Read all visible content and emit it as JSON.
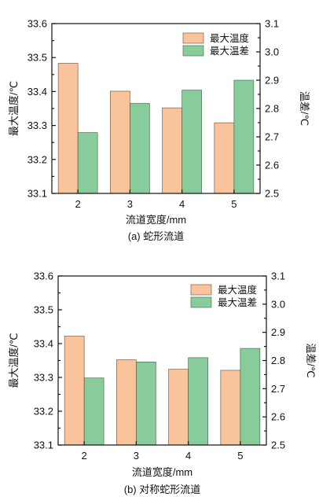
{
  "colors": {
    "max_temp": "#f9c39b",
    "max_temp_stroke": "#5a4a3a",
    "max_diff": "#89cc9b",
    "max_diff_stroke": "#3f5a45"
  },
  "chart_data": [
    {
      "type": "bar",
      "caption": "(a) 蛇形流道",
      "xlabel": "流道宽度/mm",
      "ylabel_left": "最大温度/℃",
      "ylabel_right": "温差/℃",
      "categories": [
        "2",
        "3",
        "4",
        "5"
      ],
      "ylim_left": [
        33.1,
        33.6
      ],
      "ylim_right": [
        2.5,
        3.1
      ],
      "yticks_left": [
        "33.1",
        "33.2",
        "33.3",
        "33.4",
        "33.5",
        "33.6"
      ],
      "yticks_right": [
        "2.5",
        "2.6",
        "2.7",
        "2.8",
        "2.9",
        "3.0",
        "3.1"
      ],
      "legend_position": "top-right",
      "series": [
        {
          "name": "最大温度",
          "axis": "left",
          "values": [
            33.483,
            33.401,
            33.352,
            33.308
          ]
        },
        {
          "name": "最大温差",
          "axis": "right",
          "values": [
            2.715,
            2.818,
            2.865,
            2.9
          ]
        }
      ]
    },
    {
      "type": "bar",
      "caption": "(b) 对称蛇形流道",
      "xlabel": "流道宽度/mm",
      "ylabel_left": "最大温度/℃",
      "ylabel_right": "温差/℃",
      "categories": [
        "2",
        "3",
        "4",
        "5"
      ],
      "ylim_left": [
        33.1,
        33.6
      ],
      "ylim_right": [
        2.5,
        3.1
      ],
      "yticks_left": [
        "33.1",
        "33.2",
        "33.3",
        "33.4",
        "33.5",
        "33.6"
      ],
      "yticks_right": [
        "2.5",
        "2.6",
        "2.7",
        "2.8",
        "2.9",
        "3.0",
        "3.1"
      ],
      "legend_position": "top-right",
      "series": [
        {
          "name": "最大温度",
          "axis": "left",
          "values": [
            33.422,
            33.352,
            33.324,
            33.321
          ]
        },
        {
          "name": "最大温差",
          "axis": "right",
          "values": [
            2.738,
            2.795,
            2.81,
            2.843
          ]
        }
      ]
    }
  ]
}
